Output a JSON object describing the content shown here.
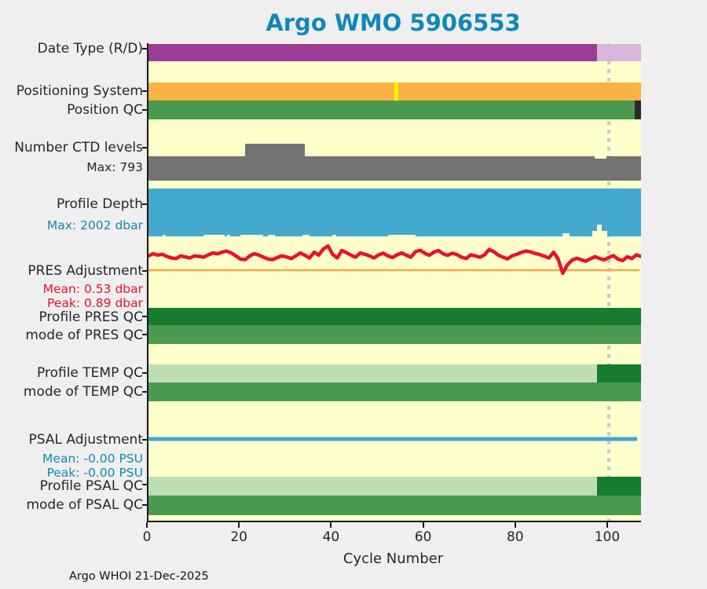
{
  "title": "Argo WMO 5906553",
  "footer": "Argo WHOI 21-Dec-2025",
  "labels": {
    "date_type": "Date Type (R/D)",
    "positioning_system": "Positioning System",
    "position_qc": "Position QC",
    "ctd_levels": "Number CTD levels",
    "ctd_max": "Max: 793",
    "profile_depth": "Profile Depth",
    "depth_max": "Max: 2002 dbar",
    "pres_adjustment": "PRES Adjustment",
    "pres_mean": "Mean: 0.53 dbar",
    "pres_peak": "Peak: 0.89 dbar",
    "profile_pres_qc": "Profile PRES QC",
    "mode_pres_qc": "mode of PRES QC",
    "profile_temp_qc": "Profile TEMP QC",
    "mode_temp_qc": "mode of TEMP QC",
    "psal_adjustment": "PSAL Adjustment",
    "psal_mean": "Mean: -0.00 PSU",
    "psal_peak": "Peak: -0.00 PSU",
    "profile_psal_qc": "Profile PSAL QC",
    "mode_psal_qc": "mode of PSAL QC",
    "xlabel": "Cycle Number"
  },
  "colors": {
    "page_bg": "#efefef",
    "plot_bg": "#ffffcc",
    "title": "#1187b9",
    "text": "#262626",
    "purple": "#9b3d97",
    "light_purple": "#d7b6da",
    "orange": "#fbb343",
    "yellow": "#f8fb00",
    "green": "#4a9a4f",
    "dark_green": "#177b31",
    "light_green": "#bedcb6",
    "black": "#2b2b2b",
    "gray": "#737373",
    "blue": "#43a9cf",
    "red": "#e8112d",
    "orange_line": "#f9a642",
    "psal_blue": "#42a6d1",
    "dotted": "#c9c9d1"
  },
  "chart_data": {
    "type": "status-timeline",
    "title": "Argo WMO 5906553",
    "xlabel": "Cycle Number",
    "x_range": [
      0,
      107
    ],
    "x_ticks": [
      0,
      20,
      40,
      60,
      80,
      100
    ],
    "marker_line_x": 100,
    "rows": {
      "date_type": [
        [
          0,
          97.5,
          "purple"
        ],
        [
          97.5,
          107,
          "light_purple"
        ]
      ],
      "positioning_system": [
        [
          0,
          107,
          "orange"
        ],
        [
          53.4,
          54.3,
          "yellow"
        ]
      ],
      "position_qc": [
        [
          0,
          105.7,
          "green"
        ],
        [
          105.7,
          107,
          "black"
        ]
      ],
      "profile_pres_qc": [
        [
          0,
          107,
          "dark_green"
        ]
      ],
      "mode_pres_qc": [
        [
          0,
          107,
          "green"
        ]
      ],
      "profile_temp_qc": [
        [
          0,
          97.5,
          "light_green"
        ],
        [
          97.5,
          107,
          "dark_green"
        ]
      ],
      "mode_temp_qc": [
        [
          0,
          107,
          "green"
        ]
      ],
      "profile_psal_qc": [
        [
          0,
          97.5,
          "light_green"
        ],
        [
          97.5,
          107,
          "dark_green"
        ]
      ],
      "mode_psal_qc": [
        [
          0,
          107,
          "green"
        ]
      ]
    },
    "ctd_levels": {
      "max": 793,
      "segments": [
        [
          0,
          21,
          523
        ],
        [
          21,
          34,
          793
        ],
        [
          34,
          97,
          523
        ],
        [
          97,
          99.5,
          480
        ],
        [
          99.5,
          107,
          523
        ]
      ]
    },
    "profile_depth": {
      "max_dbar": 2002,
      "segments": [
        [
          0,
          3,
          2002
        ],
        [
          3,
          3.8,
          1950
        ],
        [
          3.8,
          12,
          2002
        ],
        [
          12,
          16.5,
          1930
        ],
        [
          16.5,
          17,
          2002
        ],
        [
          17,
          17.8,
          1945
        ],
        [
          17.8,
          20,
          2002
        ],
        [
          20,
          25,
          1940
        ],
        [
          25,
          26,
          2002
        ],
        [
          26,
          27.5,
          1945
        ],
        [
          27.5,
          33.5,
          2002
        ],
        [
          33.5,
          35,
          1930
        ],
        [
          35,
          40,
          2002
        ],
        [
          40,
          40.8,
          1950
        ],
        [
          40.8,
          52,
          2002
        ],
        [
          52,
          57,
          1935
        ],
        [
          57,
          58,
          1950
        ],
        [
          58,
          90,
          2002
        ],
        [
          90,
          91.5,
          1860
        ],
        [
          91.5,
          96.5,
          2002
        ],
        [
          96.5,
          97.4,
          1760
        ],
        [
          97.4,
          98.4,
          1510
        ],
        [
          98.4,
          99.6,
          1760
        ],
        [
          99.6,
          107,
          2002
        ]
      ]
    },
    "pres_adjustment": {
      "unit": "dbar",
      "mean": 0.53,
      "peak": 0.89,
      "values": [
        0.52,
        0.6,
        0.55,
        0.58,
        0.5,
        0.44,
        0.42,
        0.52,
        0.48,
        0.44,
        0.52,
        0.5,
        0.47,
        0.56,
        0.63,
        0.6,
        0.66,
        0.7,
        0.63,
        0.52,
        0.4,
        0.38,
        0.52,
        0.6,
        0.55,
        0.47,
        0.4,
        0.38,
        0.46,
        0.52,
        0.48,
        0.42,
        0.52,
        0.63,
        0.54,
        0.44,
        0.66,
        0.55,
        0.78,
        0.89,
        0.58,
        0.44,
        0.72,
        0.64,
        0.55,
        0.47,
        0.63,
        0.58,
        0.52,
        0.44,
        0.56,
        0.62,
        0.52,
        0.46,
        0.56,
        0.63,
        0.55,
        0.47,
        0.68,
        0.73,
        0.62,
        0.54,
        0.66,
        0.72,
        0.6,
        0.54,
        0.62,
        0.57,
        0.47,
        0.42,
        0.56,
        0.52,
        0.47,
        0.56,
        0.76,
        0.68,
        0.55,
        0.47,
        0.41,
        0.52,
        0.58,
        0.65,
        0.7,
        0.67,
        0.61,
        0.57,
        0.51,
        0.44,
        0.66,
        0.4,
        -0.13,
        0.18,
        0.36,
        0.43,
        0.38,
        0.32,
        0.41,
        0.49,
        0.42,
        0.37,
        0.46,
        0.53,
        0.4,
        0.34,
        0.49,
        0.42,
        0.56,
        0.5
      ]
    },
    "psal_adjustment": {
      "unit": "PSU",
      "mean": -0.0,
      "peak": -0.0,
      "constant_value": 0
    }
  }
}
